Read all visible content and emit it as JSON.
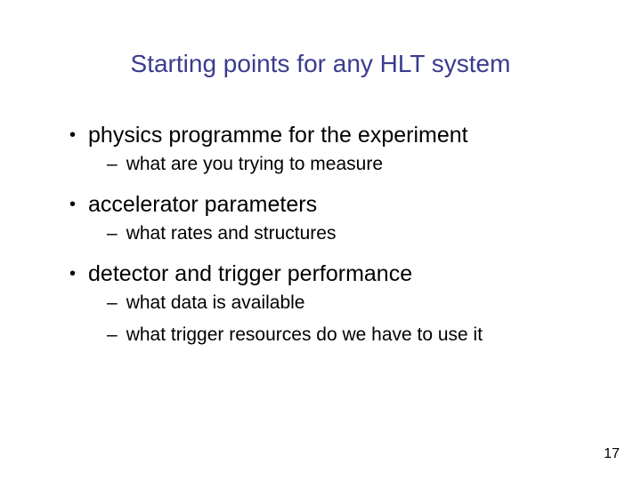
{
  "slide": {
    "title": "Starting points for any HLT system",
    "title_color": "#3b3b8f",
    "background_color": "#ffffff",
    "text_color": "#000000",
    "title_fontsize": 28,
    "bullet_fontsize": 25,
    "sub_fontsize": 21,
    "bullets": [
      {
        "text": "physics programme for the experiment",
        "subs": [
          "what are you trying to measure"
        ]
      },
      {
        "text": "accelerator parameters",
        "subs": [
          "what rates and structures"
        ]
      },
      {
        "text": "detector and trigger performance",
        "subs": [
          "what data is available",
          "what trigger resources do we have to use it"
        ]
      }
    ],
    "page_number": "17"
  }
}
